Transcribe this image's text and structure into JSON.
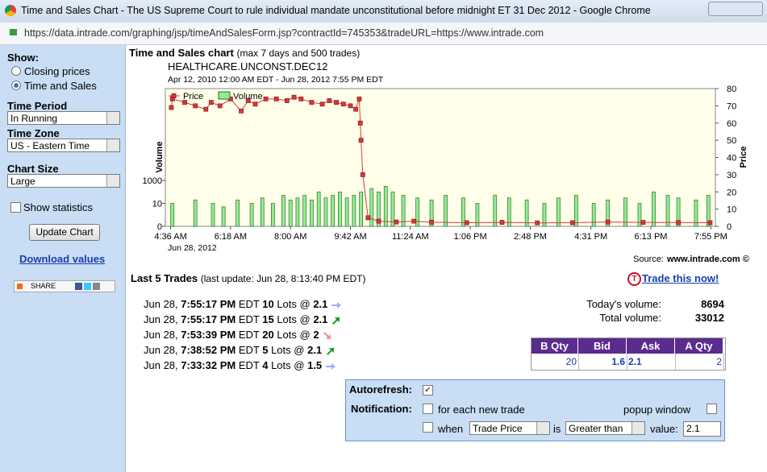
{
  "window": {
    "title": "Time and Sales Chart - The US Supreme Court to rule individual mandate unconstitutional before midnight ET 31 Dec 2012 - Google Chrome",
    "url": "https://data.intrade.com/graphing/jsp/timeAndSalesForm.jsp?contractId=745353&tradeURL=https://www.intrade.com"
  },
  "sidebar": {
    "show_label": "Show:",
    "options": [
      "Closing prices",
      "Time and Sales"
    ],
    "selected": 1,
    "time_period_label": "Time Period",
    "time_period": "In Running",
    "time_zone_label": "Time Zone",
    "time_zone": "US - Eastern Time",
    "chart_size_label": "Chart Size",
    "chart_size": "Large",
    "statistics": "Show statistics",
    "update": "Update Chart",
    "download": "Download values",
    "share": "SHARE"
  },
  "section": {
    "heading": "Time and Sales chart",
    "note": "(max 7 days and 500 trades)"
  },
  "chart_data": {
    "type": "combo",
    "title": "HEALTHCARE.UNCONST.DEC12",
    "subtitle": "Apr 12, 2010 12:00 AM EDT - Jun 28, 2012 7:55 PM EDT",
    "ylabel": "Volume",
    "y2label": "Price",
    "x_date": "Jun 28, 2012",
    "xlim": [
      4.45,
      20.05
    ],
    "xticks": [
      {
        "value": 4.6,
        "label": "4:36 AM"
      },
      {
        "value": 6.3,
        "label": "6:18 AM"
      },
      {
        "value": 8.0,
        "label": "8:00 AM"
      },
      {
        "value": 9.7,
        "label": "9:42 AM"
      },
      {
        "value": 11.4,
        "label": "11:24 AM"
      },
      {
        "value": 13.1,
        "label": "1:06 PM"
      },
      {
        "value": 14.8,
        "label": "2:48 PM"
      },
      {
        "value": 16.52,
        "label": "4:31 PM"
      },
      {
        "value": 18.22,
        "label": "6:13 PM"
      },
      {
        "value": 19.92,
        "label": "7:55 PM"
      }
    ],
    "yscale": "symlog",
    "ylim": [
      0,
      100000000000
    ],
    "yticks": [
      0,
      10,
      1000
    ],
    "y2lim": [
      0,
      80
    ],
    "y2ticks": [
      0,
      10,
      20,
      30,
      40,
      50,
      60,
      70,
      80
    ],
    "legend": "top-left",
    "series": [
      {
        "name": "Price",
        "color": "#d03c3c",
        "marker_color": "#a01818",
        "axis": "y2",
        "x": [
          4.62,
          4.65,
          5.0,
          5.3,
          5.6,
          5.75,
          6.0,
          6.3,
          6.6,
          6.8,
          7.0,
          7.3,
          7.6,
          7.9,
          8.1,
          8.3,
          8.6,
          8.9,
          9.1,
          9.3,
          9.5,
          9.7,
          9.85,
          9.95,
          9.98,
          10.0,
          10.05,
          10.2,
          10.5,
          11.0,
          11.5,
          12.0,
          13.0,
          14.0,
          15.0,
          16.0,
          17.0,
          18.0,
          19.0,
          19.9
        ],
        "values": [
          69,
          74,
          72,
          70,
          68,
          72,
          70,
          74,
          67,
          73,
          71,
          74,
          74,
          73,
          75,
          74,
          72,
          71,
          73,
          72,
          71,
          70,
          68,
          74,
          60,
          50,
          30,
          5,
          3,
          2.5,
          3,
          2.4,
          2.1,
          2.3,
          2,
          2.1,
          2.5,
          2.3,
          2.2,
          2.1
        ]
      },
      {
        "name": "Volume",
        "color": "#90ee90",
        "axis": "y",
        "x": [
          4.65,
          5.3,
          5.8,
          6.1,
          6.5,
          6.9,
          7.2,
          7.5,
          7.8,
          8.0,
          8.2,
          8.4,
          8.6,
          8.8,
          9.0,
          9.2,
          9.4,
          9.6,
          9.8,
          10.0,
          10.3,
          10.5,
          10.7,
          10.9,
          11.2,
          11.6,
          12.0,
          12.4,
          12.9,
          13.3,
          13.8,
          14.2,
          14.7,
          15.2,
          15.6,
          16.1,
          16.6,
          17.0,
          17.5,
          17.9,
          18.3,
          18.7,
          19.0,
          19.5,
          19.85
        ],
        "values": [
          10,
          20,
          10,
          5,
          20,
          10,
          30,
          10,
          50,
          20,
          30,
          50,
          20,
          100,
          30,
          50,
          100,
          30,
          50,
          100,
          200,
          100,
          300,
          100,
          50,
          30,
          20,
          50,
          30,
          10,
          50,
          30,
          20,
          10,
          30,
          50,
          10,
          20,
          30,
          10,
          100,
          50,
          30,
          20,
          50
        ]
      }
    ],
    "source_label": "Source:",
    "source": "www.intrade.com ©"
  },
  "trades": {
    "heading": "Last 5 Trades",
    "update_note": "(last update: Jun 28, 8:13:40 PM EDT)",
    "rows": [
      {
        "date": "Jun 28,",
        "time": "7:55:17 PM",
        "tz": "EDT",
        "lots": 10,
        "unit": "Lots @",
        "price": 2.1,
        "trend": "flat"
      },
      {
        "date": "Jun 28,",
        "time": "7:55:17 PM",
        "tz": "EDT",
        "lots": 15,
        "unit": "Lots @",
        "price": 2.1,
        "trend": "up"
      },
      {
        "date": "Jun 28,",
        "time": "7:53:39 PM",
        "tz": "EDT",
        "lots": 20,
        "unit": "Lots @",
        "price": 2,
        "trend": "down"
      },
      {
        "date": "Jun 28,",
        "time": "7:38:52 PM",
        "tz": "EDT",
        "lots": 5,
        "unit": "Lots @",
        "price": 2.1,
        "trend": "up"
      },
      {
        "date": "Jun 28,",
        "time": "7:33:32 PM",
        "tz": "EDT",
        "lots": 4,
        "unit": "Lots @",
        "price": 1.5,
        "trend": "flat"
      }
    ]
  },
  "trade_now": "Trade this now!",
  "volume": {
    "today_label": "Today's volume:",
    "today": 8694,
    "total_label": "Total volume:",
    "total": 33012
  },
  "quote": {
    "headers": [
      "B Qty",
      "Bid",
      "Ask",
      "A Qty"
    ],
    "row": [
      20,
      1.6,
      2.1,
      2
    ]
  },
  "autorefresh": {
    "label": "Autorefresh:",
    "notification_label": "Notification:",
    "each_trade": "for each new trade",
    "popup": "popup window",
    "when": "when",
    "field": "Trade Price",
    "is": "is",
    "comparator": "Greater than",
    "value_label": "value:",
    "value": "2.1"
  }
}
